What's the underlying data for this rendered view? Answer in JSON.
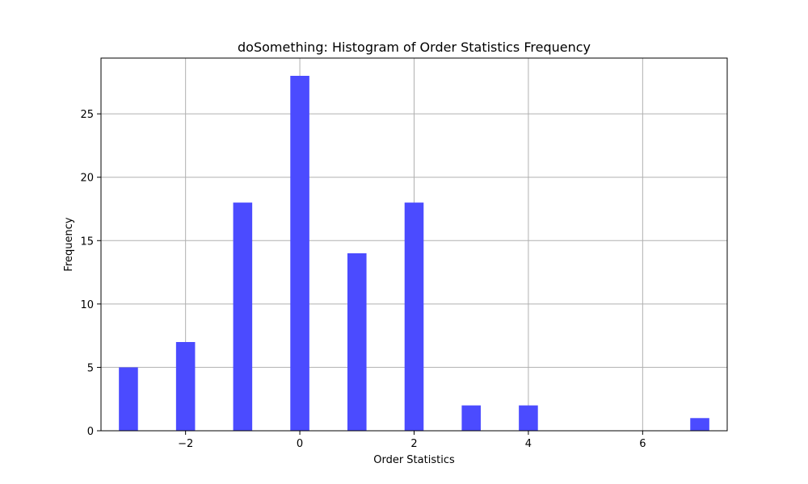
{
  "chart_data": {
    "type": "bar",
    "title": "doSomething: Histogram of Order Statistics Frequency",
    "xlabel": "Order Statistics",
    "ylabel": "Frequency",
    "x": [
      -3,
      -2,
      -1,
      0,
      1,
      2,
      3,
      4,
      7
    ],
    "values": [
      5,
      7,
      18,
      28,
      14,
      18,
      2,
      2,
      1
    ],
    "bin_width": 0.3333,
    "xlim": [
      -3.48,
      7.48
    ],
    "ylim": [
      0,
      29.4
    ],
    "xticks": [
      -2,
      0,
      2,
      4,
      6
    ],
    "xtick_labels": [
      "−2",
      "0",
      "2",
      "4",
      "6"
    ],
    "yticks": [
      0,
      5,
      10,
      15,
      20,
      25
    ],
    "ytick_labels": [
      "0",
      "5",
      "10",
      "15",
      "20",
      "25"
    ],
    "grid": true,
    "legend": "none",
    "colors": {
      "bar": "#4b4bff",
      "grid": "#b0b0b0",
      "axis": "#000000"
    }
  }
}
